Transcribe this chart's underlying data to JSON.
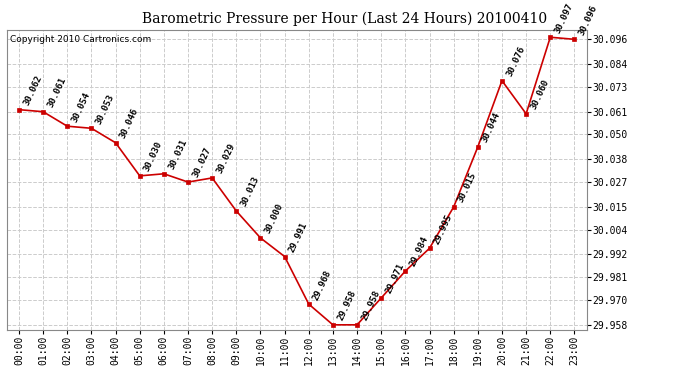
{
  "title": "Barometric Pressure per Hour (Last 24 Hours) 20100410",
  "copyright": "Copyright 2010 Cartronics.com",
  "hours": [
    "00:00",
    "01:00",
    "02:00",
    "03:00",
    "04:00",
    "05:00",
    "06:00",
    "07:00",
    "08:00",
    "09:00",
    "10:00",
    "11:00",
    "12:00",
    "13:00",
    "14:00",
    "15:00",
    "16:00",
    "17:00",
    "18:00",
    "19:00",
    "20:00",
    "21:00",
    "22:00",
    "23:00"
  ],
  "values": [
    30.062,
    30.061,
    30.054,
    30.053,
    30.046,
    30.03,
    30.031,
    30.027,
    30.029,
    30.013,
    30.0,
    29.991,
    29.968,
    29.958,
    29.958,
    29.971,
    29.984,
    29.995,
    30.015,
    30.044,
    30.076,
    30.06,
    30.097,
    30.096
  ],
  "ylim_min": 29.9555,
  "ylim_max": 30.1005,
  "yticks": [
    29.958,
    29.97,
    29.981,
    29.992,
    30.004,
    30.015,
    30.027,
    30.038,
    30.05,
    30.061,
    30.073,
    30.084,
    30.096
  ],
  "line_color": "#cc0000",
  "marker_color": "#cc0000",
  "bg_color": "#ffffff",
  "grid_color": "#cccccc",
  "title_fontsize": 10,
  "label_fontsize": 7,
  "annot_fontsize": 6.5,
  "copyright_fontsize": 6.5
}
